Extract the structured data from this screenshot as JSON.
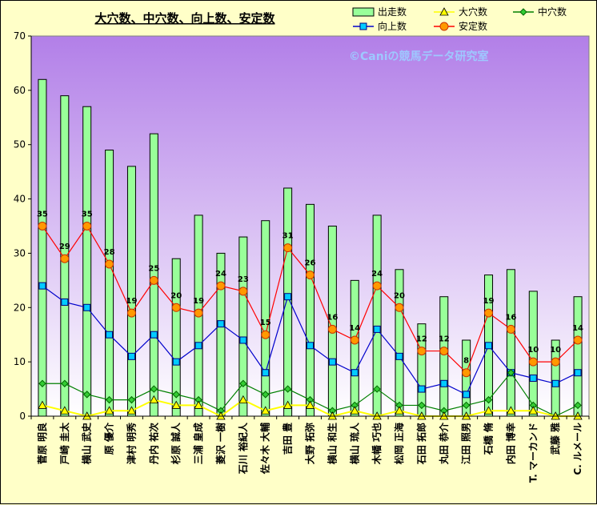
{
  "chart_data": {
    "type": "bar",
    "title": "大穴数、中穴数、向上数、安定数",
    "watermark": "©Caniの競馬データ研究室",
    "ylim": [
      0,
      70
    ],
    "yticks": [
      0,
      10,
      20,
      30,
      40,
      50,
      60,
      70
    ],
    "categories": [
      "菅原 明良",
      "戸崎 圭太",
      "横山 武史",
      "原 優介",
      "津村 明秀",
      "丹内 祐次",
      "杉原 誠人",
      "三浦 皇成",
      "菱沢 一樹",
      "石川 裕紀人",
      "佐々木 大輔",
      "吉田 豊",
      "大野 拓弥",
      "横山 和生",
      "横山 琉人",
      "木幡 巧也",
      "松岡 正海",
      "石田 拓郎",
      "丸田 恭介",
      "江田 照男",
      "石橋 脩",
      "内田 博幸",
      "T. マーカンド",
      "武藤 雅",
      "C. ルメール"
    ],
    "series": [
      {
        "name": "出走数",
        "type": "bar",
        "color": "#99ff99",
        "values": [
          62,
          59,
          57,
          49,
          46,
          52,
          29,
          37,
          30,
          33,
          36,
          42,
          39,
          35,
          25,
          37,
          27,
          17,
          22,
          14,
          26,
          27,
          23,
          14,
          22
        ]
      },
      {
        "name": "大穴数",
        "type": "line",
        "color": "#ffff00",
        "values": [
          2,
          1,
          0,
          1,
          1,
          3,
          2,
          2,
          0,
          3,
          1,
          2,
          2,
          0,
          1,
          0,
          1,
          0,
          0,
          0,
          1,
          1,
          1,
          0,
          0
        ]
      },
      {
        "name": "中穴数",
        "type": "line",
        "color": "#008000",
        "values": [
          6,
          6,
          4,
          3,
          3,
          5,
          4,
          3,
          1,
          6,
          4,
          5,
          3,
          1,
          2,
          5,
          2,
          2,
          1,
          2,
          3,
          8,
          2,
          0,
          2
        ]
      },
      {
        "name": "向上数",
        "type": "line",
        "color": "#0000cc",
        "values": [
          24,
          21,
          20,
          15,
          11,
          15,
          10,
          13,
          17,
          14,
          8,
          22,
          13,
          10,
          8,
          16,
          11,
          5,
          6,
          4,
          13,
          8,
          7,
          6,
          8
        ]
      },
      {
        "name": "安定数",
        "type": "line",
        "color": "#ff0000",
        "values": [
          35,
          29,
          35,
          28,
          19,
          25,
          20,
          19,
          24,
          23,
          15,
          31,
          26,
          16,
          14,
          24,
          20,
          12,
          12,
          8,
          19,
          16,
          10,
          10,
          14
        ]
      }
    ],
    "legend_position": "top-right",
    "grid": false
  }
}
